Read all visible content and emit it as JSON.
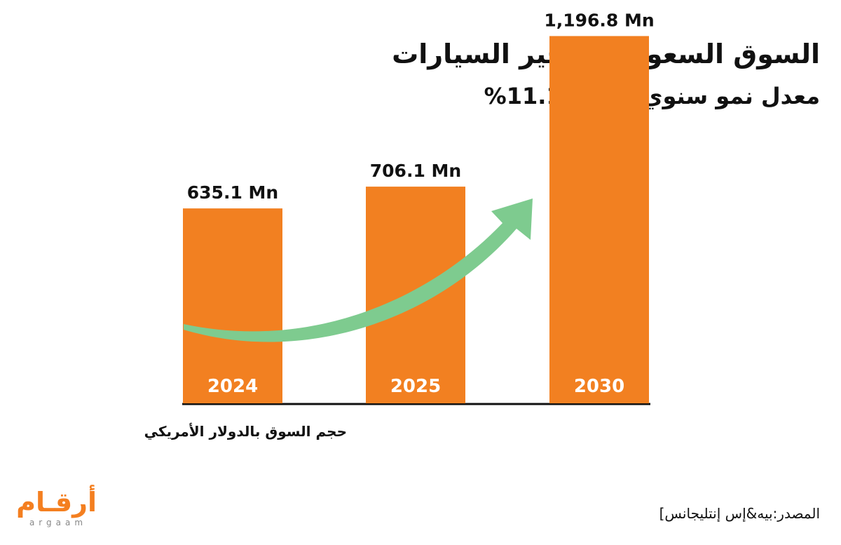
{
  "chart_data": {
    "type": "bar",
    "title": "السوق السعودية لتأجير السيارات",
    "subtitle": "معدل نمو سنوي مركب 11.1%",
    "categories": [
      "2024",
      "2025",
      "2030"
    ],
    "values": [
      635.1,
      706.1,
      1196.8
    ],
    "value_labels": [
      "635.1 Mn",
      "706.1 Mn",
      "1,196.8 Mn"
    ],
    "ylabel": "حجم السوق بالدولار الأمريكي",
    "ylim": [
      0,
      1200
    ],
    "grid": false,
    "bar_color": "#f28021",
    "arrow_color": "#7ecb8f"
  },
  "footer": {
    "source": "المصدر:بيه&إس إنتليجانس]"
  },
  "logo": {
    "arabic": "أرقـام",
    "latin": "argaam"
  }
}
